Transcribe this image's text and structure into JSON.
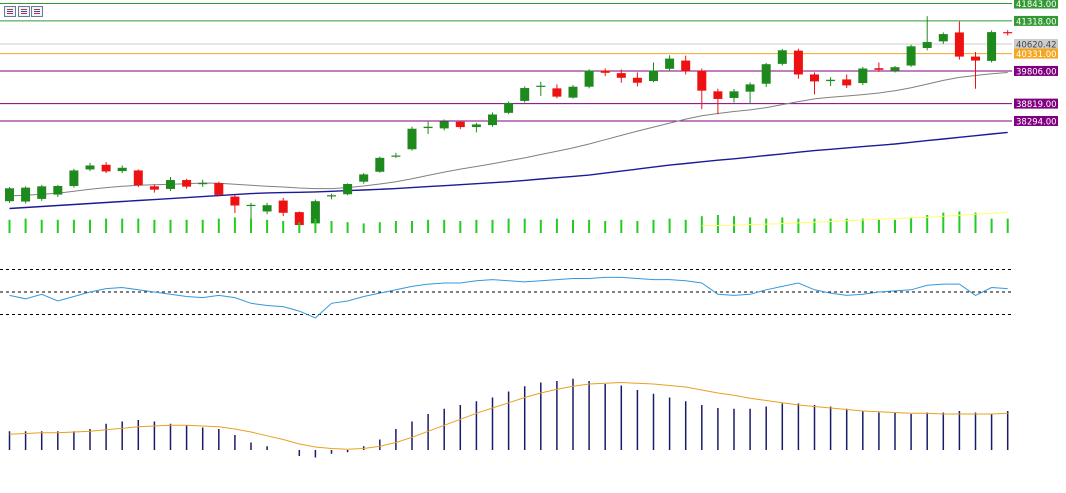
{
  "chart_data": {
    "type": "candlestick",
    "title": "",
    "colors": {
      "bull": "#1e8a1e",
      "bear": "#ee1111",
      "ma_fast": "#808080",
      "ma_slow": "#1a1a9a",
      "volume": "#22cc22",
      "volume_avg": "#ffff66",
      "rsi": "#3399dd",
      "macd_hist": "#1a1a6a",
      "macd_signal": "#e8a020"
    },
    "price_axis": {
      "min": 35000,
      "max": 41950
    },
    "levels": [
      {
        "label": "41843.00",
        "value": 41843.0,
        "color": "#339933",
        "text_color": "#ffffff"
      },
      {
        "label": "41318.00",
        "value": 41318.0,
        "color": "#339933",
        "text_color": "#ffffff"
      },
      {
        "label": "40620.42",
        "value": 40620.42,
        "color": "#cccccc",
        "text_color": "#444444"
      },
      {
        "label": "40331.00",
        "value": 40331.0,
        "color": "#f5a623",
        "text_color": "#ffffff"
      },
      {
        "label": "39806.00",
        "value": 39806.0,
        "color": "#800080",
        "text_color": "#ffffff"
      },
      {
        "label": "38819.00",
        "value": 38819.0,
        "color": "#800080",
        "text_color": "#ffffff"
      },
      {
        "label": "38294.00",
        "value": 38294.0,
        "color": "#800080",
        "text_color": "#ffffff"
      }
    ],
    "candles": [
      [
        35870,
        36260,
        35820,
        36300
      ],
      [
        35860,
        36280,
        35800,
        36320
      ],
      [
        35940,
        36320,
        35880,
        36360
      ],
      [
        36070,
        36330,
        36000,
        36360
      ],
      [
        36330,
        36800,
        36280,
        36850
      ],
      [
        36830,
        36950,
        36780,
        37030
      ],
      [
        36970,
        36770,
        36720,
        37050
      ],
      [
        36780,
        36880,
        36720,
        36950
      ],
      [
        36800,
        36350,
        36300,
        36830
      ],
      [
        36320,
        36220,
        36130,
        36380
      ],
      [
        36240,
        36510,
        36180,
        36600
      ],
      [
        36510,
        36310,
        36250,
        36550
      ],
      [
        36420,
        36420,
        36300,
        36520
      ],
      [
        36420,
        36060,
        36020,
        36460
      ],
      [
        36010,
        35740,
        35510,
        36060
      ],
      [
        35760,
        35760,
        35280,
        35820
      ],
      [
        35560,
        35750,
        35480,
        35820
      ],
      [
        35890,
        35520,
        35420,
        35970
      ],
      [
        35540,
        35150,
        35100,
        35560
      ],
      [
        35200,
        35870,
        35150,
        35920
      ],
      [
        36020,
        36050,
        35930,
        36090
      ],
      [
        36080,
        36390,
        36050,
        36410
      ],
      [
        36460,
        36680,
        36400,
        36720
      ],
      [
        36760,
        37180,
        36730,
        37220
      ],
      [
        37230,
        37250,
        37180,
        37330
      ],
      [
        37440,
        38060,
        37400,
        38120
      ],
      [
        38080,
        38120,
        37900,
        38270
      ],
      [
        38070,
        38280,
        38010,
        38340
      ],
      [
        38270,
        38110,
        38050,
        38300
      ],
      [
        38110,
        38190,
        37950,
        38240
      ],
      [
        38170,
        38490,
        38120,
        38550
      ],
      [
        38540,
        38840,
        38500,
        38880
      ],
      [
        38900,
        39290,
        38850,
        39340
      ],
      [
        39350,
        39360,
        39050,
        39480
      ],
      [
        39280,
        39030,
        38980,
        39400
      ],
      [
        39000,
        39330,
        38970,
        39380
      ],
      [
        39330,
        39820,
        39280,
        39860
      ],
      [
        39820,
        39750,
        39650,
        39880
      ],
      [
        39740,
        39600,
        39450,
        39850
      ],
      [
        39600,
        39450,
        39340,
        39760
      ],
      [
        39500,
        39820,
        39470,
        40060
      ],
      [
        39870,
        40180,
        39800,
        40280
      ],
      [
        40120,
        39800,
        39700,
        40270
      ],
      [
        39810,
        39210,
        38650,
        39880
      ],
      [
        39190,
        38960,
        38500,
        39270
      ],
      [
        38990,
        39190,
        38850,
        39260
      ],
      [
        39180,
        39400,
        38820,
        39460
      ],
      [
        39420,
        40010,
        39320,
        40050
      ],
      [
        40020,
        40430,
        39970,
        40470
      ],
      [
        40420,
        39700,
        39570,
        40480
      ],
      [
        39700,
        39490,
        39100,
        39760
      ],
      [
        39500,
        39540,
        39350,
        39620
      ],
      [
        39550,
        39370,
        39290,
        39700
      ],
      [
        39440,
        39880,
        39380,
        39930
      ],
      [
        39890,
        39840,
        39780,
        40060
      ],
      [
        39810,
        39920,
        39760,
        39960
      ],
      [
        39970,
        40550,
        39930,
        40600
      ],
      [
        40500,
        40680,
        40430,
        41460
      ],
      [
        40700,
        40920,
        40620,
        40970
      ],
      [
        40970,
        40240,
        40150,
        41300
      ],
      [
        40240,
        40120,
        39270,
        40380
      ],
      [
        40110,
        40980,
        40060,
        41030
      ],
      [
        40980,
        40950,
        40880,
        41040
      ]
    ],
    "ma_fast": [
      36030,
      36050,
      36080,
      36110,
      36170,
      36230,
      36280,
      36320,
      36350,
      36370,
      36380,
      36400,
      36420,
      36410,
      36380,
      36350,
      36320,
      36300,
      36270,
      36250,
      36250,
      36280,
      36330,
      36390,
      36460,
      36550,
      36650,
      36750,
      36840,
      36920,
      37000,
      37090,
      37180,
      37280,
      37380,
      37480,
      37600,
      37730,
      37860,
      37990,
      38110,
      38230,
      38350,
      38450,
      38520,
      38580,
      38630,
      38700,
      38790,
      38880,
      38960,
      39010,
      39050,
      39090,
      39140,
      39210,
      39300,
      39410,
      39520,
      39610,
      39670,
      39720,
      39760
    ],
    "ma_slow": [
      35650,
      35680,
      35710,
      35740,
      35770,
      35800,
      35830,
      35860,
      35890,
      35920,
      35950,
      35980,
      36010,
      36040,
      36070,
      36100,
      36120,
      36130,
      36140,
      36150,
      36170,
      36190,
      36210,
      36230,
      36250,
      36280,
      36310,
      36340,
      36370,
      36400,
      36430,
      36460,
      36500,
      36540,
      36580,
      36620,
      36660,
      36720,
      36780,
      36840,
      36900,
      36960,
      37010,
      37060,
      37110,
      37150,
      37200,
      37250,
      37300,
      37350,
      37400,
      37440,
      37480,
      37520,
      37560,
      37600,
      37650,
      37700,
      37750,
      37800,
      37850,
      37900,
      37950
    ],
    "volume": [
      0.55,
      0.6,
      0.55,
      0.55,
      0.55,
      0.55,
      0.6,
      0.6,
      0.6,
      0.55,
      0.55,
      0.55,
      0.55,
      0.6,
      0.65,
      0.6,
      0.55,
      0.5,
      0.45,
      0.6,
      0.5,
      0.45,
      0.4,
      0.45,
      0.5,
      0.5,
      0.55,
      0.55,
      0.5,
      0.55,
      0.55,
      0.6,
      0.6,
      0.55,
      0.6,
      0.55,
      0.55,
      0.5,
      0.55,
      0.5,
      0.55,
      0.6,
      0.55,
      0.7,
      0.75,
      0.7,
      0.65,
      0.6,
      0.65,
      0.6,
      0.6,
      0.6,
      0.6,
      0.6,
      0.55,
      0.55,
      0.65,
      0.75,
      0.85,
      0.9,
      0.85,
      0.6,
      0.6
    ],
    "volume_avg_start_index": 43,
    "volume_avg": [
      0.3,
      0.31,
      0.33,
      0.35,
      0.37,
      0.39,
      0.42,
      0.45,
      0.48,
      0.51,
      0.54,
      0.57,
      0.6,
      0.63,
      0.66,
      0.7,
      0.74,
      0.78,
      0.82,
      0.87
    ],
    "rsi_levels": [
      70,
      50,
      30
    ],
    "rsi": [
      47,
      44,
      48,
      42,
      46,
      50,
      53,
      54,
      52,
      50,
      48,
      46,
      45,
      47,
      45,
      40,
      38,
      37,
      33,
      27,
      40,
      42,
      46,
      49,
      52,
      55,
      57,
      58,
      58,
      60,
      61,
      60,
      59,
      60,
      61,
      62,
      62,
      63,
      63,
      62,
      61,
      61,
      60,
      58,
      48,
      47,
      48,
      52,
      55,
      58,
      52,
      49,
      47,
      48,
      50,
      51,
      52,
      56,
      57,
      57,
      47,
      54,
      53
    ],
    "macd_range": [
      -18,
      120
    ],
    "macd_hist": [
      25,
      25,
      25,
      25,
      25,
      28,
      35,
      38,
      40,
      38,
      35,
      33,
      30,
      28,
      20,
      10,
      5,
      0,
      -8,
      -10,
      -5,
      -3,
      5,
      14,
      28,
      38,
      48,
      55,
      60,
      65,
      70,
      78,
      85,
      90,
      92,
      95,
      92,
      88,
      86,
      80,
      75,
      70,
      65,
      60,
      56,
      55,
      55,
      58,
      62,
      62,
      60,
      58,
      55,
      52,
      50,
      50,
      48,
      50,
      50,
      52,
      50,
      48,
      52
    ],
    "macd_signal": [
      21,
      22,
      23,
      23,
      24,
      25,
      27,
      29,
      31,
      32,
      33,
      33,
      32,
      31,
      28,
      24,
      19,
      14,
      8,
      4,
      2,
      1,
      2,
      5,
      10,
      17,
      25,
      33,
      41,
      49,
      56,
      63,
      70,
      76,
      81,
      85,
      88,
      89,
      90,
      89,
      88,
      86,
      84,
      80,
      76,
      73,
      69,
      66,
      63,
      60,
      58,
      56,
      54,
      52,
      51,
      50,
      49,
      49,
      48,
      48,
      48,
      48,
      49
    ]
  }
}
